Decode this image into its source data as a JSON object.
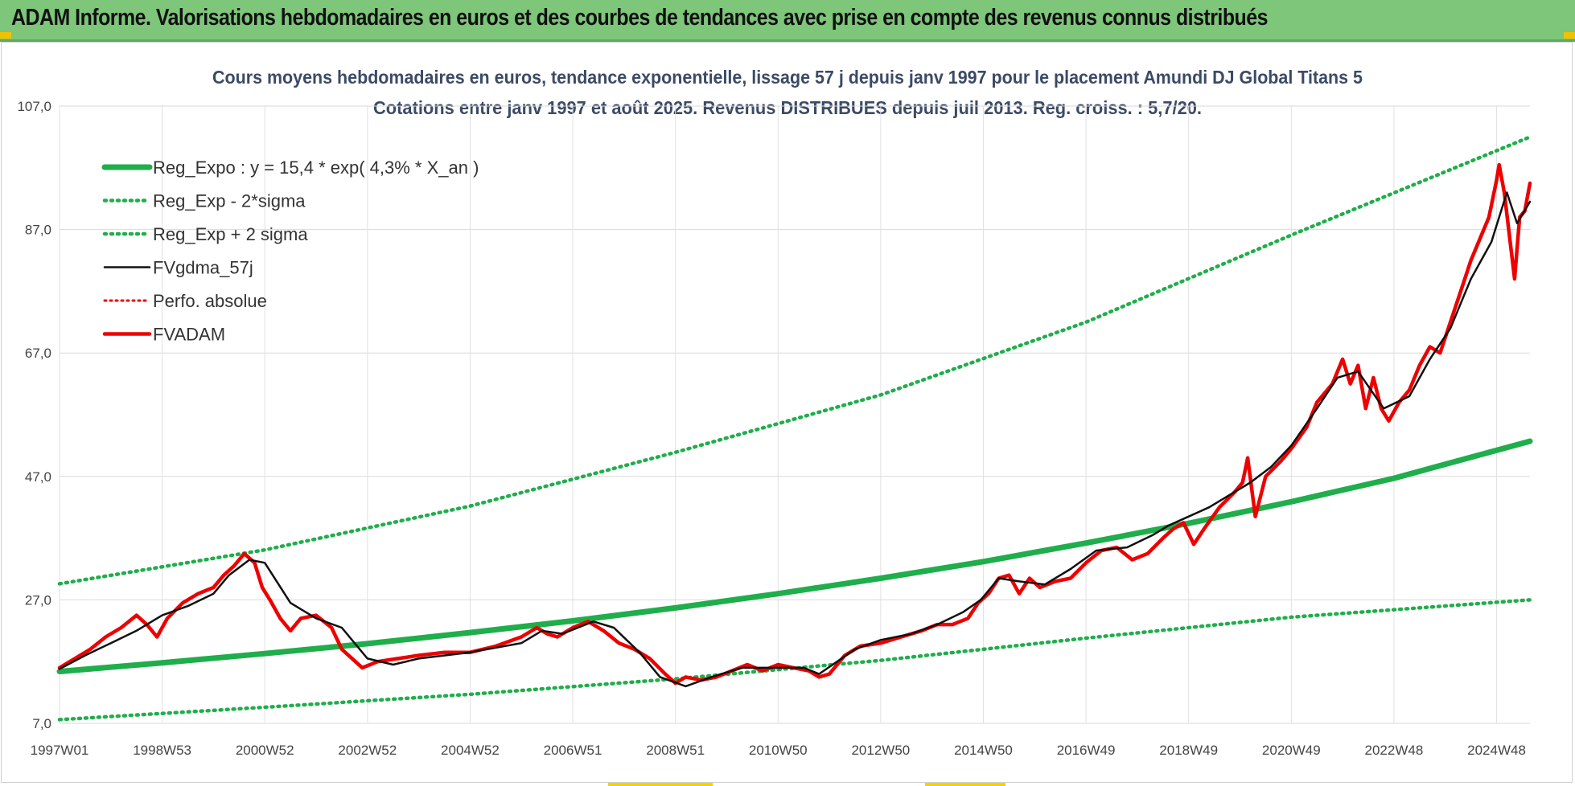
{
  "header": {
    "title": "ADAM Informe. Valorisations hebdomadaires en euros et des courbes de tendances avec prise en compte des revenus connus distribués"
  },
  "colors": {
    "banner": "#7dc67a",
    "accent_gold": "#f2c100",
    "reg_green": "#1fae4b",
    "sigma_green": "#1fae4b",
    "gdma_black": "#111111",
    "perf_red": "#ee0000",
    "adam_red": "#ee0000"
  },
  "chart_data": {
    "type": "line",
    "title": "Cours moyens hebdomadaires en euros, tendance exponentielle, lissage 57 j depuis janv 1997 pour le placement Amundi DJ Global Titans 5",
    "subtitle": "Cotations entre janv 1997 et août 2025. Revenus DISTRIBUES depuis juil 2013. Reg. croiss. : 5,7/20.",
    "xlabel": "",
    "ylabel": "",
    "ylim": [
      7,
      107
    ],
    "xlim": [
      1997.0,
      2025.65
    ],
    "grid": true,
    "legend_position": "top-left",
    "y_ticks": [
      "7,0",
      "27,0",
      "47,0",
      "67,0",
      "87,0",
      "107,0"
    ],
    "y_tick_values": [
      7,
      27,
      47,
      67,
      87,
      107
    ],
    "x_ticks": [
      "1997W01",
      "1998W53",
      "2000W52",
      "2002W52",
      "2004W52",
      "2006W51",
      "2008W51",
      "2010W50",
      "2012W50",
      "2014W50",
      "2016W49",
      "2018W49",
      "2020W49",
      "2022W48",
      "2024W48"
    ],
    "x_tick_values": [
      1997.0,
      1999.0,
      2001.0,
      2003.0,
      2005.0,
      2007.0,
      2009.0,
      2011.0,
      2013.0,
      2015.0,
      2017.0,
      2019.0,
      2021.0,
      2023.0,
      2025.0
    ],
    "series": [
      {
        "name": "Reg_Expo : y = 15,4 * exp( 4,3% *  X_an )",
        "style": "solid-thick",
        "x": [
          1997.0,
          1999.0,
          2001.0,
          2003.0,
          2005.0,
          2007.0,
          2009.0,
          2011.0,
          2013.0,
          2015.0,
          2017.0,
          2019.0,
          2021.0,
          2023.0,
          2025.65
        ],
        "values": [
          15.4,
          16.8,
          18.3,
          19.9,
          21.7,
          23.6,
          25.7,
          28.0,
          30.5,
          33.2,
          36.2,
          39.4,
          42.9,
          46.7,
          52.7
        ]
      },
      {
        "name": "Reg_Exp - 2*sigma",
        "style": "dotted",
        "x": [
          1997.0,
          2001.0,
          2005.0,
          2009.0,
          2013.0,
          2017.0,
          2021.0,
          2025.65
        ],
        "values": [
          7.6,
          9.6,
          11.7,
          14.2,
          17.2,
          20.8,
          24.2,
          27.0
        ]
      },
      {
        "name": "Reg_Exp + 2 sigma",
        "style": "dotted",
        "x": [
          1997.0,
          2001.0,
          2005.0,
          2009.0,
          2013.0,
          2017.0,
          2021.0,
          2025.65
        ],
        "values": [
          29.6,
          35.1,
          42.2,
          50.9,
          60.2,
          72.0,
          86.1,
          102.0
        ]
      },
      {
        "name": "FVgdma_57j",
        "style": "solid",
        "x": [
          1997.0,
          1997.5,
          1998.0,
          1998.5,
          1999.0,
          1999.5,
          2000.0,
          2000.3,
          2000.7,
          2001.0,
          2001.5,
          2002.0,
          2002.5,
          2003.0,
          2003.5,
          2004.0,
          2005.0,
          2006.0,
          2006.4,
          2006.8,
          2007.4,
          2007.8,
          2008.3,
          2008.7,
          2009.2,
          2009.7,
          2010.3,
          2010.9,
          2011.5,
          2011.8,
          2012.5,
          2013.0,
          2013.6,
          2014.1,
          2014.6,
          2014.95,
          2015.3,
          2015.7,
          2016.2,
          2016.7,
          2017.2,
          2017.8,
          2018.3,
          2018.6,
          2019.0,
          2019.4,
          2019.8,
          2020.2,
          2020.6,
          2021.0,
          2021.5,
          2021.9,
          2022.3,
          2022.8,
          2023.3,
          2023.7,
          2024.1,
          2024.5,
          2024.9,
          2025.2,
          2025.4,
          2025.65
        ],
        "values": [
          15.8,
          18.0,
          20.0,
          22.0,
          24.5,
          26.0,
          28.0,
          31.0,
          33.5,
          33.0,
          26.5,
          24.0,
          22.5,
          17.5,
          16.5,
          17.5,
          18.5,
          20.0,
          22.0,
          21.5,
          23.5,
          22.5,
          18.5,
          14.5,
          13.0,
          14.5,
          16.0,
          16.0,
          16.0,
          15.0,
          19.0,
          20.5,
          21.5,
          23.0,
          25.0,
          27.0,
          30.5,
          30.0,
          29.5,
          32.0,
          35.0,
          35.5,
          37.5,
          39.0,
          40.5,
          42.0,
          44.0,
          46.0,
          48.5,
          52.0,
          58.0,
          63.0,
          64.0,
          58.0,
          60.0,
          66.0,
          71.0,
          79.0,
          85.0,
          93.0,
          88.0,
          91.5
        ]
      },
      {
        "name": "Perfo. absolue",
        "style": "dotted",
        "x": [],
        "values": []
      },
      {
        "name": "FVADAM",
        "style": "solid-thick",
        "x": [
          1997.0,
          1997.3,
          1997.6,
          1997.9,
          1998.2,
          1998.5,
          1998.7,
          1998.9,
          1999.1,
          1999.4,
          1999.7,
          2000.0,
          2000.2,
          2000.4,
          2000.6,
          2000.8,
          2000.95,
          2001.1,
          2001.3,
          2001.5,
          2001.7,
          2002.0,
          2002.3,
          2002.5,
          2002.7,
          2002.9,
          2003.2,
          2003.6,
          2004.0,
          2004.5,
          2005.0,
          2005.5,
          2006.0,
          2006.3,
          2006.5,
          2006.7,
          2007.0,
          2007.3,
          2007.6,
          2007.9,
          2008.2,
          2008.5,
          2008.8,
          2009.0,
          2009.2,
          2009.5,
          2009.8,
          2010.1,
          2010.4,
          2010.7,
          2011.0,
          2011.3,
          2011.6,
          2011.8,
          2012.0,
          2012.3,
          2012.6,
          2013.0,
          2013.4,
          2013.8,
          2014.1,
          2014.4,
          2014.7,
          2014.9,
          2015.1,
          2015.3,
          2015.5,
          2015.7,
          2015.9,
          2016.1,
          2016.4,
          2016.7,
          2017.0,
          2017.3,
          2017.6,
          2017.9,
          2018.2,
          2018.5,
          2018.7,
          2018.9,
          2019.1,
          2019.3,
          2019.6,
          2019.9,
          2020.05,
          2020.15,
          2020.3,
          2020.5,
          2020.8,
          2021.0,
          2021.3,
          2021.5,
          2021.8,
          2022.0,
          2022.15,
          2022.3,
          2022.45,
          2022.6,
          2022.75,
          2022.9,
          2023.1,
          2023.3,
          2023.5,
          2023.7,
          2023.9,
          2024.1,
          2024.3,
          2024.5,
          2024.7,
          2024.85,
          2025.0,
          2025.05,
          2025.15,
          2025.25,
          2025.35,
          2025.45,
          2025.55,
          2025.65
        ],
        "values": [
          16.0,
          17.5,
          19.0,
          21.0,
          22.5,
          24.5,
          23.0,
          21.0,
          24.0,
          26.5,
          28.0,
          29.0,
          31.0,
          32.5,
          34.5,
          33.0,
          29.0,
          27.0,
          24.0,
          22.0,
          24.0,
          24.5,
          22.5,
          19.0,
          17.5,
          16.0,
          17.0,
          17.5,
          18.0,
          18.5,
          18.5,
          19.5,
          21.0,
          22.5,
          21.5,
          21.0,
          22.5,
          23.5,
          22.0,
          20.0,
          19.0,
          17.5,
          15.0,
          13.5,
          14.5,
          14.0,
          14.5,
          15.5,
          16.5,
          15.5,
          16.5,
          16.0,
          15.5,
          14.5,
          15.0,
          18.0,
          19.5,
          20.0,
          21.0,
          22.0,
          23.0,
          23.0,
          24.0,
          26.5,
          28.0,
          30.5,
          31.0,
          28.0,
          30.5,
          29.0,
          30.0,
          30.5,
          33.0,
          35.0,
          35.5,
          33.5,
          34.5,
          37.0,
          38.5,
          39.5,
          36.0,
          38.5,
          42.0,
          44.5,
          46.0,
          50.0,
          40.5,
          47.0,
          49.5,
          51.5,
          55.0,
          59.0,
          62.0,
          66.0,
          62.0,
          65.0,
          58.0,
          63.0,
          58.0,
          56.0,
          59.0,
          61.0,
          65.0,
          68.0,
          67.0,
          72.0,
          77.0,
          82.0,
          86.0,
          89.0,
          95.0,
          97.5,
          93.0,
          86.0,
          79.0,
          89.0,
          90.0,
          94.5
        ]
      }
    ]
  }
}
